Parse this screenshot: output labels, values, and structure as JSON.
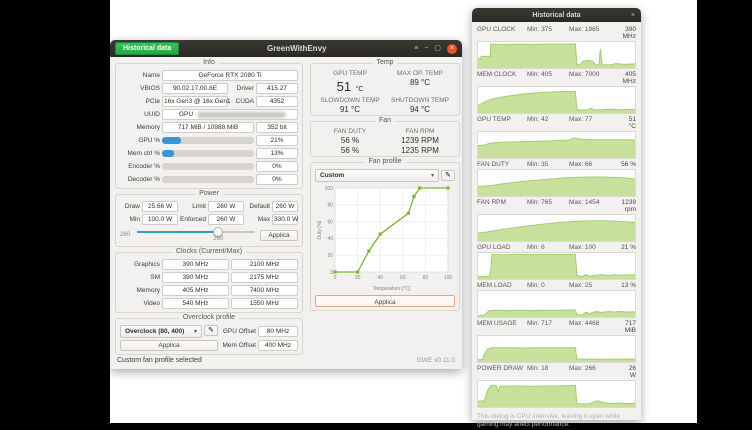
{
  "colors": {
    "accent_green": "#2fb34f",
    "chart_line": "#7db72c",
    "history_fill": "#c7e19c",
    "history_line": "#a6cc72",
    "progress_blue": "#3498d8",
    "close_orange": "#e95420"
  },
  "icons": {
    "menu": "≡",
    "minimize": "−",
    "maximize": "▢",
    "close": "×",
    "pencil": "✎",
    "dropdown_arrow": "▾"
  },
  "main_window": {
    "titlebar": {
      "historical_button": "Historical data",
      "title": "GreenWithEnvy"
    },
    "info": {
      "title": "Info",
      "name_label": "Name",
      "name_value": "GeForce RTX 2080 Ti",
      "vbios_label": "VBIOS",
      "vbios_value": "90.02.17.00.8E",
      "driver_label": "Driver",
      "driver_value": "415.27",
      "pcie_label": "PCIe",
      "pcie_value": "16x Gen3 @ 16x Gen1",
      "cuda_label": "CUDA",
      "cuda_value": "4352",
      "uuid_label": "UUID",
      "uuid_value": "GPU",
      "memory_label": "Memory",
      "memory_value": "717 MiB / 10988 MiB",
      "memory_interface": "352 bit",
      "usage_rows": [
        {
          "label": "GPU %",
          "percent": 21,
          "value": "21%"
        },
        {
          "label": "Mem ctrl %",
          "percent": 13,
          "value": "13%"
        },
        {
          "label": "Encoder %",
          "percent": 0,
          "value": "0%"
        },
        {
          "label": "Decoder %",
          "percent": 0,
          "value": "0%"
        }
      ]
    },
    "power": {
      "title": "Power",
      "draw_label": "Draw",
      "draw_value": "25.66 W",
      "limit_label": "Limit",
      "limit_value": "260 W",
      "default_label": "Default",
      "default_value": "260 W",
      "min_label": "Min",
      "min_value": "100.0 W",
      "enforced_label": "Enforced",
      "enforced_value": "260 W",
      "max_label": "Max",
      "max_value": "330.0 W",
      "slider_left_label": "260",
      "slider_value": "260",
      "slider_percent": 69,
      "apply_label": "Applica"
    },
    "clocks": {
      "title": "Clocks (Current/Max)",
      "rows": [
        {
          "label": "Graphics",
          "current": "390 MHz",
          "max": "2100 MHz"
        },
        {
          "label": "SM",
          "current": "390 MHz",
          "max": "2175 MHz"
        },
        {
          "label": "Memory",
          "current": "405 MHz",
          "max": "7400 MHz"
        },
        {
          "label": "Video",
          "current": "540 MHz",
          "max": "1550 MHz"
        }
      ]
    },
    "overclock": {
      "title": "Overclock profile",
      "profile_selected": "Overclock (80, 400)",
      "apply_label": "Applica",
      "gpu_offset_label": "GPU Offset",
      "gpu_offset_value": "80 MHz",
      "mem_offset_label": "Mem Offset",
      "mem_offset_value": "400 MHz"
    },
    "temp": {
      "title": "Temp",
      "gpu_temp_label": "GPU TEMP",
      "gpu_temp_value": "51",
      "gpu_temp_unit": "°C",
      "max_op_label": "MAX OP. TEMP",
      "max_op_value": "89 °C",
      "slowdown_label": "SLOWDOWN TEMP",
      "slowdown_value": "91 °C",
      "shutdown_label": "SHUTDOWN TEMP",
      "shutdown_value": "94 °C"
    },
    "fan": {
      "title": "Fan",
      "duty_label": "FAN DUTY",
      "rpm_label": "FAN RPM",
      "duty_values": [
        "56 %",
        "56 %"
      ],
      "rpm_values": [
        "1239 RPM",
        "1235 RPM"
      ]
    },
    "fan_profile": {
      "title": "Fan profile",
      "selected": "Custom",
      "apply_label": "Applica",
      "chart_data": {
        "type": "line",
        "x": [
          0,
          20,
          30,
          40,
          65,
          70,
          75,
          100
        ],
        "y": [
          0,
          0,
          25,
          45,
          70,
          90,
          100,
          100
        ],
        "xlabel": "Temperature [°C]",
        "ylabel": "Duty [%]",
        "xlim": [
          0,
          100
        ],
        "ylim": [
          0,
          100
        ],
        "xticks": [
          0,
          20,
          40,
          60,
          80,
          100
        ],
        "yticks": [
          0,
          20,
          40,
          60,
          80,
          100
        ],
        "grid": true
      }
    },
    "statusbar": {
      "status": "Custom fan profile selected",
      "version": "GWE v0.11.0"
    }
  },
  "history_window": {
    "title": "Historical data",
    "graphs": [
      {
        "name": "GPU CLOCK",
        "min_label": "Min:",
        "min": "375",
        "max_label": "Max:",
        "max": "1965",
        "current": "390 MHz",
        "points": [
          [
            0,
            36
          ],
          [
            2,
            36
          ],
          [
            2,
            45
          ],
          [
            8,
            45
          ],
          [
            8,
            92
          ],
          [
            15,
            90
          ],
          [
            25,
            92
          ],
          [
            35,
            91
          ],
          [
            45,
            92
          ],
          [
            55,
            92
          ],
          [
            62,
            93
          ],
          [
            63,
            14
          ],
          [
            65,
            12
          ],
          [
            67,
            26
          ],
          [
            70,
            29
          ],
          [
            73,
            26
          ],
          [
            75,
            12
          ],
          [
            77,
            12
          ],
          [
            78,
            74
          ],
          [
            79,
            12
          ],
          [
            84,
            12
          ],
          [
            88,
            17
          ],
          [
            93,
            14
          ],
          [
            100,
            16
          ]
        ]
      },
      {
        "name": "MEM CLOCK",
        "min_label": "Min:",
        "min": "405",
        "max_label": "Max:",
        "max": "7000",
        "current": "405 MHz",
        "points": [
          [
            0,
            28
          ],
          [
            4,
            42
          ],
          [
            8,
            52
          ],
          [
            14,
            60
          ],
          [
            20,
            66
          ],
          [
            28,
            72
          ],
          [
            36,
            77
          ],
          [
            44,
            80
          ],
          [
            52,
            82
          ],
          [
            58,
            83
          ],
          [
            62,
            83
          ],
          [
            63,
            14
          ],
          [
            66,
            11
          ],
          [
            70,
            13
          ],
          [
            72,
            19
          ],
          [
            74,
            12
          ],
          [
            80,
            13
          ],
          [
            85,
            15
          ],
          [
            90,
            12
          ],
          [
            95,
            14
          ],
          [
            100,
            13
          ]
        ]
      },
      {
        "name": "GPU TEMP",
        "min_label": "Min:",
        "min": "42",
        "max_label": "Max:",
        "max": "77",
        "current": "51 °C",
        "points": [
          [
            0,
            48
          ],
          [
            4,
            50
          ],
          [
            8,
            57
          ],
          [
            14,
            60
          ],
          [
            22,
            62
          ],
          [
            30,
            63
          ],
          [
            40,
            65
          ],
          [
            50,
            67
          ],
          [
            58,
            69
          ],
          [
            61,
            77
          ],
          [
            64,
            74
          ],
          [
            68,
            71
          ],
          [
            75,
            70
          ],
          [
            85,
            70
          ],
          [
            95,
            70
          ],
          [
            100,
            69
          ]
        ]
      },
      {
        "name": "FAN DUTY",
        "min_label": "Min:",
        "min": "35",
        "max_label": "Max:",
        "max": "66",
        "current": "56 %",
        "points": [
          [
            0,
            36
          ],
          [
            8,
            40
          ],
          [
            16,
            47
          ],
          [
            24,
            53
          ],
          [
            32,
            58
          ],
          [
            40,
            62
          ],
          [
            48,
            66
          ],
          [
            56,
            70
          ],
          [
            64,
            72
          ],
          [
            72,
            73
          ],
          [
            80,
            73
          ],
          [
            88,
            71
          ],
          [
            94,
            69
          ],
          [
            100,
            66
          ]
        ]
      },
      {
        "name": "FAN RPM",
        "min_label": "Min:",
        "min": "765",
        "max_label": "Max:",
        "max": "1454",
        "current": "1239 rpm",
        "points": [
          [
            0,
            30
          ],
          [
            8,
            37
          ],
          [
            16,
            45
          ],
          [
            24,
            52
          ],
          [
            32,
            58
          ],
          [
            40,
            64
          ],
          [
            48,
            69
          ],
          [
            56,
            73
          ],
          [
            64,
            76
          ],
          [
            72,
            78
          ],
          [
            80,
            78
          ],
          [
            88,
            76
          ],
          [
            94,
            74
          ],
          [
            100,
            71
          ]
        ]
      },
      {
        "name": "GPU LOAD",
        "min_label": "Min:",
        "min": "6",
        "max_label": "Max:",
        "max": "100",
        "current": "21 %",
        "points": [
          [
            0,
            9
          ],
          [
            7,
            9
          ],
          [
            8,
            28
          ],
          [
            9,
            95
          ],
          [
            15,
            93
          ],
          [
            25,
            95
          ],
          [
            35,
            94
          ],
          [
            45,
            95
          ],
          [
            55,
            94
          ],
          [
            62,
            95
          ],
          [
            63,
            14
          ],
          [
            66,
            9
          ],
          [
            69,
            17
          ],
          [
            71,
            11
          ],
          [
            75,
            14
          ],
          [
            79,
            17
          ],
          [
            83,
            13
          ],
          [
            87,
            17
          ],
          [
            91,
            14
          ],
          [
            95,
            16
          ],
          [
            100,
            17
          ]
        ]
      },
      {
        "name": "MEM LOAD",
        "min_label": "Min:",
        "min": "0",
        "max_label": "Max:",
        "max": "25",
        "current": "13 %",
        "points": [
          [
            0,
            5
          ],
          [
            4,
            7
          ],
          [
            7,
            24
          ],
          [
            12,
            26
          ],
          [
            20,
            25
          ],
          [
            28,
            26
          ],
          [
            36,
            25
          ],
          [
            44,
            26
          ],
          [
            52,
            26
          ],
          [
            58,
            27
          ],
          [
            62,
            27
          ],
          [
            63,
            10
          ],
          [
            66,
            7
          ],
          [
            69,
            19
          ],
          [
            71,
            13
          ],
          [
            75,
            21
          ],
          [
            79,
            18
          ],
          [
            83,
            21
          ],
          [
            87,
            19
          ],
          [
            91,
            21
          ],
          [
            95,
            19
          ],
          [
            100,
            20
          ]
        ]
      },
      {
        "name": "MEM USAGE",
        "min_label": "Min:",
        "min": "717",
        "max_label": "Max:",
        "max": "4468",
        "current": "717 MiB",
        "points": [
          [
            0,
            9
          ],
          [
            3,
            9
          ],
          [
            4,
            30
          ],
          [
            6,
            50
          ],
          [
            9,
            55
          ],
          [
            18,
            55
          ],
          [
            28,
            54
          ],
          [
            38,
            55
          ],
          [
            48,
            55
          ],
          [
            58,
            55
          ],
          [
            62,
            55
          ],
          [
            63,
            11
          ],
          [
            70,
            11
          ],
          [
            76,
            10
          ],
          [
            82,
            11
          ],
          [
            90,
            11
          ],
          [
            100,
            11
          ]
        ]
      },
      {
        "name": "POWER DRAW",
        "min_label": "Min:",
        "min": "18",
        "max_label": "Max:",
        "max": "266",
        "current": "26 W",
        "points": [
          [
            0,
            22
          ],
          [
            4,
            24
          ],
          [
            6,
            62
          ],
          [
            8,
            82
          ],
          [
            10,
            84
          ],
          [
            12,
            80
          ],
          [
            13,
            58
          ],
          [
            14,
            80
          ],
          [
            18,
            80
          ],
          [
            26,
            81
          ],
          [
            34,
            80
          ],
          [
            42,
            81
          ],
          [
            50,
            81
          ],
          [
            58,
            82
          ],
          [
            62,
            83
          ],
          [
            63,
            14
          ],
          [
            67,
            11
          ],
          [
            71,
            13
          ],
          [
            76,
            24
          ],
          [
            80,
            17
          ],
          [
            85,
            13
          ],
          [
            90,
            15
          ],
          [
            95,
            13
          ],
          [
            100,
            15
          ]
        ]
      }
    ],
    "footer": "This dialog is CPU intensive, leaving it open while gaming may affect performance."
  }
}
